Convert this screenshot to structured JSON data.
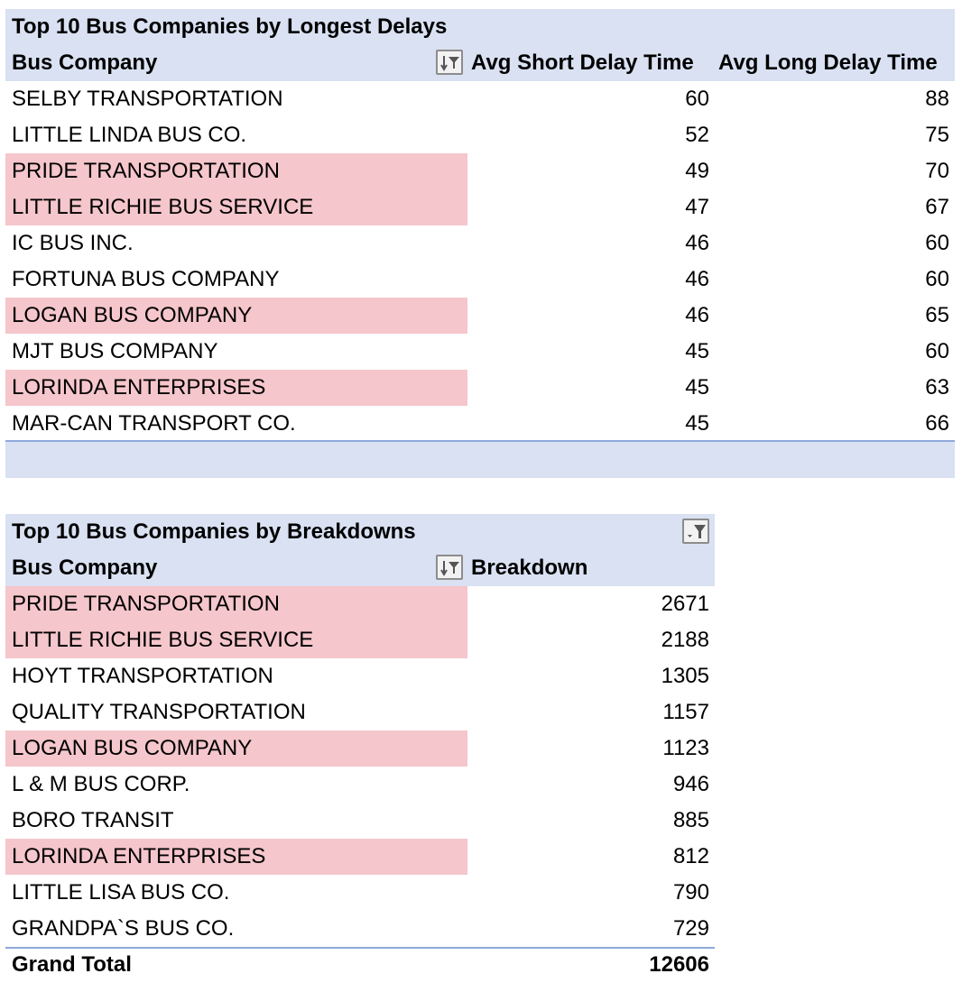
{
  "pivot1": {
    "title": "Top 10 Bus Companies by Longest Delays",
    "headers": {
      "company": "Bus Company",
      "short": "Avg Short Delay Time",
      "long": "Avg Long Delay Time"
    },
    "rows": [
      {
        "company": "SELBY TRANSPORTATION",
        "short": "60",
        "long": "88"
      },
      {
        "company": "LITTLE LINDA BUS CO.",
        "short": "52",
        "long": "75"
      },
      {
        "company": "PRIDE TRANSPORTATION",
        "short": "49",
        "long": "70"
      },
      {
        "company": "LITTLE RICHIE BUS SERVICE",
        "short": "47",
        "long": "67"
      },
      {
        "company": "IC BUS INC.",
        "short": "46",
        "long": "60"
      },
      {
        "company": "FORTUNA BUS COMPANY",
        "short": "46",
        "long": "60"
      },
      {
        "company": "LOGAN BUS COMPANY",
        "short": "46",
        "long": "65"
      },
      {
        "company": "MJT BUS COMPANY",
        "short": "45",
        "long": "60"
      },
      {
        "company": "LORINDA ENTERPRISES",
        "short": "45",
        "long": "63"
      },
      {
        "company": "MAR-CAN TRANSPORT CO.",
        "short": "45",
        "long": "66"
      }
    ]
  },
  "pivot2": {
    "title": "Top 10 Bus Companies by Breakdowns",
    "headers": {
      "company": "Bus Company",
      "breakdown": "Breakdown"
    },
    "rows": [
      {
        "company": "PRIDE TRANSPORTATION",
        "breakdown": "2671"
      },
      {
        "company": "LITTLE RICHIE BUS SERVICE",
        "breakdown": "2188"
      },
      {
        "company": "HOYT TRANSPORTATION",
        "breakdown": "1305"
      },
      {
        "company": "QUALITY TRANSPORTATION",
        "breakdown": "1157"
      },
      {
        "company": "LOGAN BUS COMPANY",
        "breakdown": "1123"
      },
      {
        "company": "L & M BUS CORP.",
        "breakdown": "946"
      },
      {
        "company": "BORO TRANSIT",
        "breakdown": "885"
      },
      {
        "company": "LORINDA ENTERPRISES",
        "breakdown": "812"
      },
      {
        "company": "LITTLE LISA BUS CO.",
        "breakdown": "790"
      },
      {
        "company": "GRANDPA`S BUS CO.",
        "breakdown": "729"
      }
    ],
    "grand_total_label": "Grand Total",
    "grand_total_value": "12606"
  },
  "colors": {
    "header_fill": "#d9e1f2",
    "highlight_fill": "#f5c6cb",
    "border": "#8ea9db"
  },
  "icons": {
    "sort_filter": "sort-descending-filter-icon",
    "filter": "filter-dropdown-icon"
  }
}
